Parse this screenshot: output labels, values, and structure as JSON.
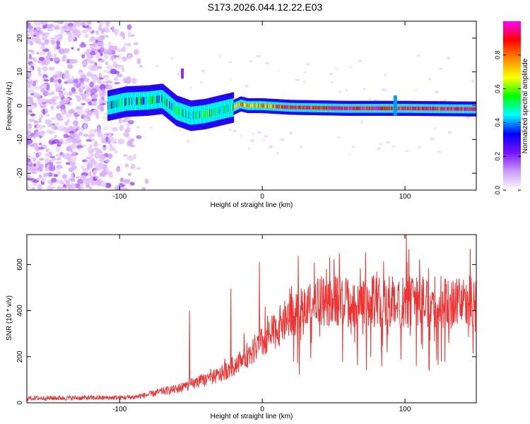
{
  "title": "S173.2026.044.12.22.E03",
  "chart_data": [
    {
      "type": "heatmap",
      "xlabel": "Height of straight line (km)",
      "ylabel": "Frequency (Hz)",
      "xlim": [
        -165,
        150
      ],
      "ylim": [
        -25,
        25
      ],
      "xticks": [
        -100,
        0,
        100
      ],
      "yticks": [
        -20,
        -10,
        0,
        10,
        20
      ],
      "colorbar": {
        "label": "Normalized spectral amplitude",
        "range": [
          0,
          1
        ],
        "ticks": [
          "0.0",
          "0.2",
          "0.4",
          "0.6",
          "0.8"
        ],
        "colors": [
          "#ffffff",
          "#cc99ff",
          "#7711ff",
          "#0000ff",
          "#00ffff",
          "#00ff00",
          "#ffff00",
          "#ff8800",
          "#ff0000",
          "#ff00ff"
        ]
      },
      "ridge": {
        "x": [
          -108,
          -95,
          -80,
          -70,
          -60,
          -50,
          -40,
          -30,
          -20,
          -15,
          -10,
          0,
          20,
          60,
          90,
          100,
          150
        ],
        "frequency": [
          0,
          1.2,
          1.5,
          2.0,
          -1.5,
          -3.0,
          -2.5,
          -1.5,
          -0.5,
          0.5,
          0,
          0,
          -0.5,
          -0.8,
          -0.8,
          -0.8,
          -1.0
        ]
      },
      "noise_region_x": [
        -165,
        -80
      ]
    },
    {
      "type": "line",
      "xlabel": "Height of straight line (km)",
      "ylabel": "SNR (10 * v/v)",
      "xlim": [
        -165,
        150
      ],
      "ylim": [
        0,
        730
      ],
      "xticks": [
        -100,
        0,
        100
      ],
      "yticks": [
        0,
        200,
        400,
        600
      ],
      "series": [
        {
          "name": "SNR",
          "color": "#ee3333",
          "envelope_x": [
            -165,
            -100,
            -90,
            -80,
            -70,
            -60,
            -50,
            -40,
            -30,
            -20,
            -10,
            0,
            10,
            20,
            30,
            40,
            60,
            80,
            100,
            120,
            150
          ],
          "envelope_y": [
            20,
            22,
            25,
            35,
            50,
            60,
            80,
            100,
            120,
            160,
            210,
            260,
            320,
            380,
            420,
            440,
            440,
            440,
            440,
            440,
            440
          ],
          "spikes": [
            {
              "x": -51,
              "y": 400
            },
            {
              "x": -22,
              "y": 495
            },
            {
              "x": -2,
              "y": 610
            },
            {
              "x": 101,
              "y": 730
            },
            {
              "x": 45,
              "y": 580
            }
          ]
        }
      ]
    }
  ]
}
